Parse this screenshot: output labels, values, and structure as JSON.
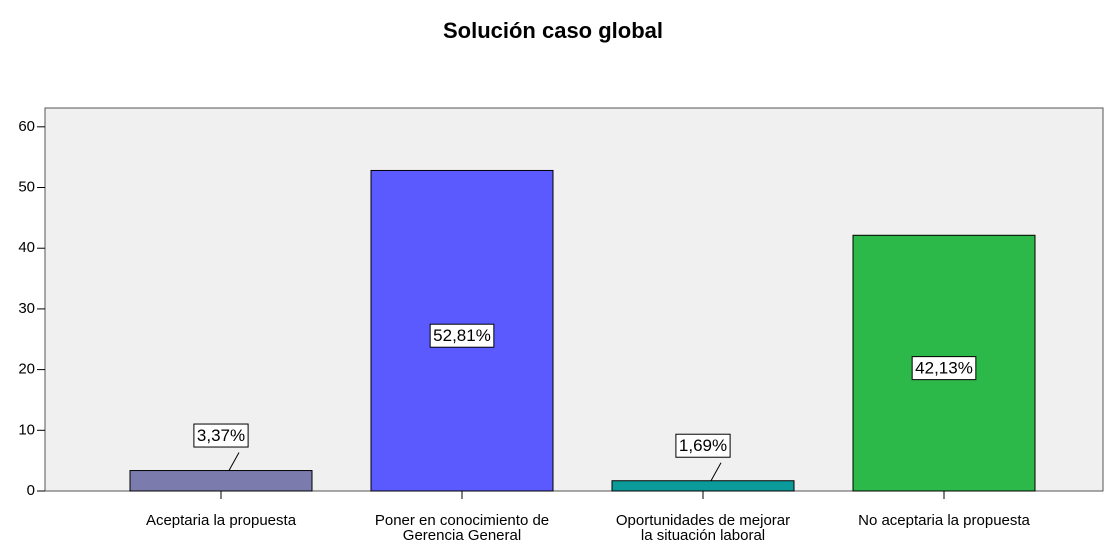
{
  "chart_data": {
    "type": "bar",
    "title": "Solución caso global",
    "categories": [
      "Aceptaria la propuesta",
      "Poner en conocimiento de\nGerencia General",
      "Oportunidades de mejorar\nla situación laboral",
      "No aceptaria la propuesta"
    ],
    "values": [
      3.37,
      52.81,
      1.69,
      42.13
    ],
    "value_labels": [
      "3,37%",
      "52,81%",
      "1,69%",
      "42,13%"
    ],
    "colors": [
      "#7b7bad",
      "#5a5aff",
      "#0c9b9b",
      "#2db84a"
    ],
    "ylim": [
      0,
      63.1
    ],
    "yticks": [
      0,
      10,
      20,
      30,
      40,
      50,
      60
    ]
  }
}
